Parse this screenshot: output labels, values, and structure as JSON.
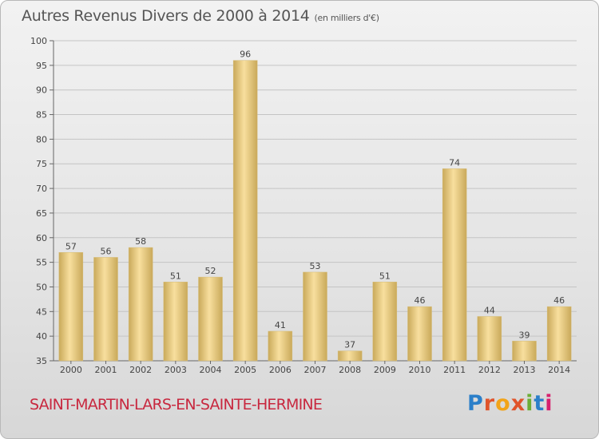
{
  "header": {
    "title": "Autres Revenus Divers de 2000 à 2014",
    "unit": "(en milliers d'€)"
  },
  "footer": {
    "town": "SAINT-MARTIN-LARS-EN-SAINTE-HERMINE",
    "logo_text": "Proxiti",
    "logo_colors": [
      "#2b7fc9",
      "#e0542b",
      "#f2a419",
      "#e0542b",
      "#6cae36",
      "#2b7fc9",
      "#d8206d"
    ]
  },
  "colors": {
    "bar_light": "#f8df9e",
    "bar_dark": "#c9a95a",
    "town": "#c8283f"
  },
  "chart_data": {
    "type": "bar",
    "categories": [
      "2000",
      "2001",
      "2002",
      "2003",
      "2004",
      "2005",
      "2006",
      "2007",
      "2008",
      "2009",
      "2010",
      "2011",
      "2012",
      "2013",
      "2014"
    ],
    "values": [
      57,
      56,
      58,
      51,
      52,
      96,
      41,
      53,
      37,
      51,
      46,
      74,
      44,
      39,
      46
    ],
    "ylim": [
      35,
      100
    ],
    "yticks": [
      35,
      40,
      45,
      50,
      55,
      60,
      65,
      70,
      75,
      80,
      85,
      90,
      95,
      100
    ],
    "grid": true
  }
}
